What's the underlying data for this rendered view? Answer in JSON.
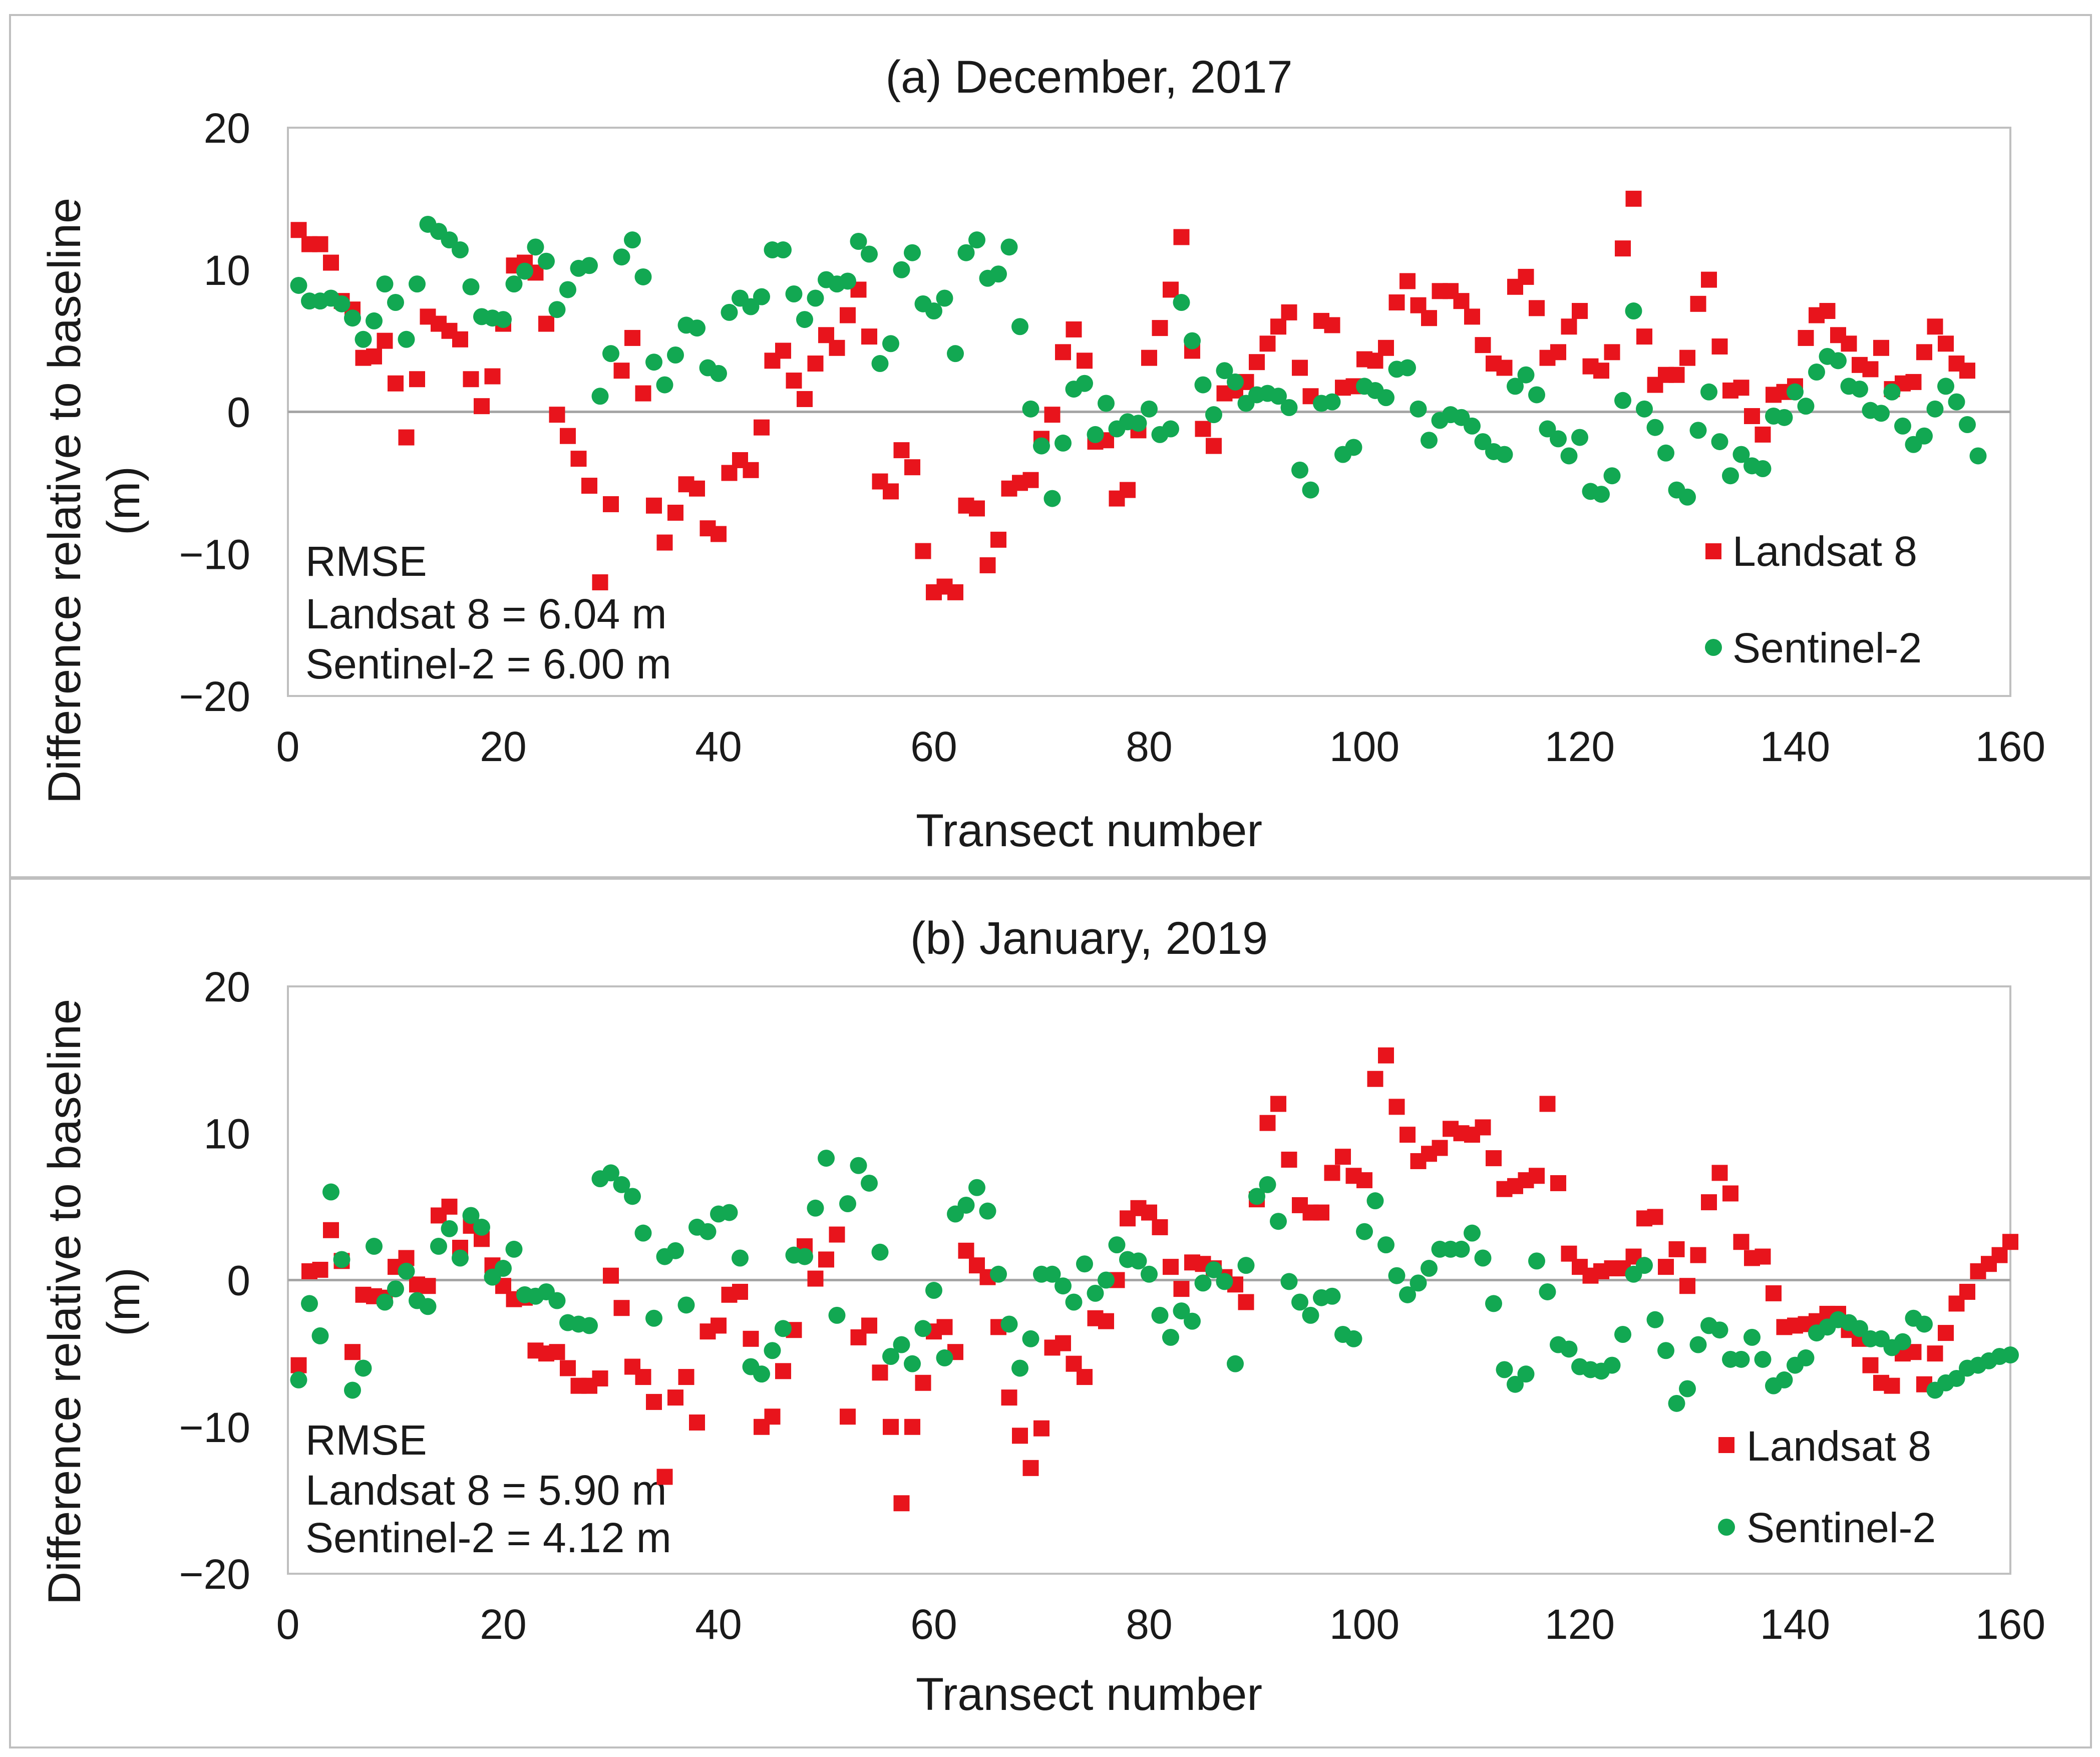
{
  "colors": {
    "landsat": "#e8141c",
    "sentinel": "#12a852",
    "gridline": "#d0d0d0",
    "frame": "#bfbfbf",
    "zero_line": "#a6a6a6"
  },
  "chart_data": [
    {
      "type": "scatter",
      "title": "(a) December, 2017",
      "xlabel": "Transect number",
      "ylabel": "Difference relative to baseline (m)",
      "ylabel_lines": [
        "Difference relative to baseline",
        "(m)"
      ],
      "xlim": [
        0,
        160
      ],
      "ylim": [
        -20,
        20
      ],
      "xticks": [
        "0",
        "20",
        "40",
        "60",
        "80",
        "100",
        "120",
        "140",
        "160"
      ],
      "yticks": [
        "20",
        "10",
        "0",
        "−10",
        "−20"
      ],
      "grid": "horizontal",
      "legend": {
        "placement": "right-middle",
        "entries": [
          "Landsat 8",
          "Sentinel-2"
        ]
      },
      "annotation": [
        "RMSE",
        "Landsat 8 = 6.04 m",
        "Sentinel-2 = 6.00 m"
      ],
      "x": [
        1,
        2,
        3,
        4,
        5,
        6,
        7,
        8,
        9,
        10,
        11,
        12,
        13,
        14,
        15,
        16,
        17,
        18,
        19,
        20,
        21,
        22,
        23,
        24,
        25,
        26,
        27,
        28,
        29,
        30,
        31,
        32,
        33,
        34,
        35,
        36,
        37,
        38,
        39,
        40,
        41,
        42,
        43,
        44,
        45,
        46,
        47,
        48,
        49,
        50,
        51,
        52,
        53,
        54,
        55,
        56,
        57,
        58,
        59,
        60,
        61,
        62,
        63,
        64,
        65,
        66,
        67,
        68,
        69,
        70,
        71,
        72,
        73,
        74,
        75,
        76,
        77,
        78,
        79,
        80,
        81,
        82,
        83,
        84,
        85,
        86,
        87,
        88,
        89,
        90,
        91,
        92,
        93,
        94,
        95,
        96,
        97,
        98,
        99,
        100,
        101,
        102,
        103,
        104,
        105,
        106,
        107,
        108,
        109,
        110,
        111,
        112,
        113,
        114,
        115,
        116,
        117,
        118,
        119,
        120,
        121,
        122,
        123,
        124,
        125,
        126,
        127,
        128,
        129,
        130,
        131,
        132,
        133,
        134,
        135,
        136,
        137,
        138,
        139,
        140,
        141,
        142,
        143,
        144,
        145,
        146,
        147,
        148,
        149,
        150,
        151,
        152,
        153,
        154,
        155,
        156,
        157
      ],
      "series": [
        {
          "name": "Landsat 8",
          "marker": "square",
          "values": [
            12.8,
            11.8,
            11.8,
            10.5,
            7.8,
            7.2,
            3.8,
            3.9,
            5.0,
            2.0,
            -1.8,
            2.3,
            6.7,
            6.2,
            5.7,
            5.1,
            2.3,
            0.4,
            2.5,
            6.2,
            10.3,
            10.5,
            9.8,
            6.2,
            -0.2,
            -1.7,
            -3.3,
            -5.2,
            -12.0,
            -6.5,
            2.9,
            5.2,
            1.3,
            -6.6,
            -9.2,
            -7.1,
            -5.1,
            -5.4,
            -8.2,
            -8.6,
            -4.3,
            -3.4,
            -4.1,
            -1.1,
            3.6,
            4.3,
            2.2,
            0.9,
            3.4,
            5.4,
            4.5,
            6.8,
            8.6,
            5.3,
            -4.9,
            -5.6,
            -2.7,
            -3.9,
            -9.8,
            -12.7,
            -12.3,
            -12.7,
            -6.6,
            -6.8,
            -10.8,
            -9.0,
            -5.4,
            -5.0,
            -4.8,
            -1.9,
            -0.2,
            4.2,
            5.8,
            3.6,
            -2.1,
            -2.0,
            -6.1,
            -5.5,
            -1.3,
            3.8,
            5.9,
            8.6,
            12.3,
            4.3,
            -1.2,
            -2.4,
            1.3,
            1.5,
            2.1,
            3.5,
            4.8,
            6.0,
            7.0,
            3.1,
            1.1,
            6.4,
            6.1,
            1.7,
            1.8,
            3.7,
            3.6,
            4.5,
            7.7,
            9.2,
            7.5,
            6.6,
            8.5,
            8.5,
            7.8,
            6.7,
            4.7,
            3.4,
            3.1,
            8.8,
            9.5,
            7.3,
            3.8,
            4.2,
            6.0,
            7.1,
            3.2,
            2.9,
            4.2,
            11.5,
            15.0,
            5.3,
            1.9,
            2.6,
            2.6,
            3.8,
            7.6,
            9.3,
            4.6,
            1.5,
            1.7,
            -0.3,
            -1.6,
            1.2,
            1.4,
            1.8,
            5.2,
            6.8,
            7.1,
            5.4,
            4.8,
            3.3,
            3.0,
            4.5,
            1.6,
            2.0,
            2.1,
            4.2,
            6.0,
            4.8,
            3.4,
            2.9
          ]
        },
        {
          "name": "Sentinel-2",
          "marker": "circle",
          "values": [
            8.9,
            7.8,
            7.8,
            8.0,
            7.6,
            6.6,
            5.1,
            6.4,
            9.0,
            7.7,
            5.1,
            9.0,
            13.2,
            12.7,
            12.1,
            11.4,
            8.8,
            6.7,
            6.6,
            6.5,
            9.0,
            9.9,
            11.6,
            10.6,
            7.2,
            8.6,
            10.1,
            10.3,
            1.1,
            4.1,
            10.9,
            12.1,
            9.5,
            3.5,
            1.9,
            4.0,
            6.1,
            5.9,
            3.1,
            2.7,
            7.0,
            8.0,
            7.4,
            8.1,
            11.4,
            11.4,
            8.3,
            6.5,
            8.0,
            9.3,
            9.0,
            9.2,
            12.0,
            11.1,
            3.4,
            4.8,
            10.0,
            11.2,
            7.6,
            7.1,
            8.0,
            4.1,
            11.2,
            12.1,
            9.4,
            9.7,
            11.6,
            6.0,
            0.2,
            -2.4,
            -6.1,
            -2.2,
            1.6,
            2.0,
            -1.6,
            0.6,
            -1.2,
            -0.7,
            -0.8,
            0.2,
            -1.6,
            -1.2,
            7.7,
            5.0,
            1.9,
            -0.2,
            2.9,
            2.1,
            0.6,
            1.2,
            1.3,
            1.1,
            0.3,
            -4.1,
            -5.5,
            0.6,
            0.7,
            -3.0,
            -2.5,
            1.8,
            1.5,
            1.0,
            3.0,
            3.1,
            0.2,
            -2.0,
            -0.6,
            -0.2,
            -0.4,
            -1.0,
            -2.1,
            -2.8,
            -3.0,
            1.8,
            2.6,
            1.2,
            -1.2,
            -1.9,
            -3.1,
            -1.8,
            -5.6,
            -5.8,
            -4.5,
            0.8,
            7.1,
            0.2,
            -1.1,
            -2.9,
            -5.5,
            -6.0,
            -1.3,
            1.4,
            -2.1,
            -4.5,
            -3.0,
            -3.8,
            -4.0,
            -0.3,
            -0.4,
            1.4,
            0.4,
            2.8,
            3.9,
            3.6,
            1.8,
            1.6,
            0.1,
            -0.1,
            1.4,
            -1.0,
            -2.3,
            -1.7,
            0.2,
            1.8,
            0.7,
            -0.9,
            -3.1
          ]
        }
      ]
    },
    {
      "type": "scatter",
      "title": "(b) January, 2019",
      "xlabel": "Transect number",
      "ylabel": "Difference relative to baseline (m)",
      "ylabel_lines": [
        "Difference relative to baseline",
        "(m)"
      ],
      "xlim": [
        0,
        160
      ],
      "ylim": [
        -20,
        20
      ],
      "xticks": [
        "0",
        "20",
        "40",
        "60",
        "80",
        "100",
        "120",
        "140",
        "160"
      ],
      "yticks": [
        "20",
        "10",
        "0",
        "−10",
        "−20"
      ],
      "grid": "horizontal",
      "legend": {
        "placement": "right-bottom",
        "entries": [
          "Landsat 8",
          "Sentinel-2"
        ]
      },
      "annotation": [
        "RMSE",
        "Landsat 8 = 5.90 m",
        "Sentinel-2 = 4.12 m"
      ],
      "x": [
        1,
        2,
        3,
        4,
        5,
        6,
        7,
        8,
        9,
        10,
        11,
        12,
        13,
        14,
        15,
        16,
        17,
        18,
        19,
        20,
        21,
        22,
        23,
        24,
        25,
        26,
        27,
        28,
        29,
        30,
        31,
        32,
        33,
        34,
        35,
        36,
        37,
        38,
        39,
        40,
        41,
        42,
        43,
        44,
        45,
        46,
        47,
        48,
        49,
        50,
        51,
        52,
        53,
        54,
        55,
        56,
        57,
        58,
        59,
        60,
        61,
        62,
        63,
        64,
        65,
        66,
        67,
        68,
        69,
        70,
        71,
        72,
        73,
        74,
        75,
        76,
        77,
        78,
        79,
        80,
        81,
        82,
        83,
        84,
        85,
        86,
        87,
        88,
        89,
        90,
        91,
        92,
        93,
        94,
        95,
        96,
        97,
        98,
        99,
        100,
        101,
        102,
        103,
        104,
        105,
        106,
        107,
        108,
        109,
        110,
        111,
        112,
        113,
        114,
        115,
        116,
        117,
        118,
        119,
        120,
        121,
        122,
        123,
        124,
        125,
        126,
        127,
        128,
        129,
        130,
        131,
        132,
        133,
        134,
        135,
        136,
        137,
        138,
        139,
        140,
        141,
        142,
        143,
        144,
        145,
        146,
        147,
        148,
        149,
        150,
        151,
        152,
        153,
        154,
        155,
        156,
        157,
        158,
        159,
        160
      ],
      "series": [
        {
          "name": "Landsat 8",
          "marker": "square",
          "values": [
            -5.8,
            0.6,
            0.7,
            3.4,
            1.3,
            -4.9,
            -1.0,
            -1.1,
            -1.2,
            0.9,
            1.5,
            -0.3,
            -0.4,
            4.4,
            5.0,
            2.2,
            3.7,
            2.8,
            1.0,
            -0.4,
            -1.3,
            -1.2,
            -4.8,
            -5.0,
            -4.9,
            -6.0,
            -7.2,
            -7.2,
            -6.7,
            0.3,
            -1.9,
            -5.9,
            -6.6,
            -8.3,
            -13.4,
            -8.0,
            -6.6,
            -9.7,
            -3.5,
            -3.1,
            -1.0,
            -0.8,
            -4.0,
            -10.0,
            -9.3,
            -6.2,
            -3.4,
            2.3,
            0.1,
            1.4,
            3.1,
            -9.3,
            -3.9,
            -3.1,
            -6.3,
            -10.0,
            -15.2,
            -10.0,
            -7.0,
            -3.5,
            -3.2,
            -4.9,
            2.0,
            1.0,
            0.2,
            -3.2,
            -8.0,
            -10.6,
            -12.8,
            -10.1,
            -4.6,
            -4.3,
            -5.7,
            -6.6,
            -2.6,
            -2.8,
            0.0,
            4.2,
            4.9,
            4.6,
            3.6,
            0.9,
            -0.6,
            1.2,
            1.1,
            0.8,
            0.2,
            -0.3,
            -1.5,
            5.5,
            10.7,
            12.0,
            8.2,
            5.1,
            4.6,
            4.6,
            7.3,
            8.4,
            7.1,
            6.8,
            13.7,
            15.3,
            11.8,
            9.9,
            8.1,
            8.6,
            9.0,
            10.3,
            10.0,
            9.9,
            10.4,
            8.3,
            6.2,
            6.4,
            6.8,
            7.1,
            12.0,
            6.6,
            1.8,
            0.9,
            0.3,
            0.6,
            0.8,
            0.8,
            1.6,
            4.2,
            4.3,
            0.9,
            2.1,
            -0.4,
            1.7,
            5.3,
            7.3,
            5.9,
            2.6,
            1.5,
            1.6,
            -0.9,
            -3.2,
            -3.1,
            -3.0,
            -2.8,
            -2.3,
            -2.3,
            -3.4,
            -4.0,
            -5.8,
            -7.0,
            -7.2,
            -5.0,
            -4.9,
            -7.1,
            -5.0,
            -3.6,
            -1.6,
            -0.8,
            0.6,
            1.1,
            1.7,
            2.6
          ]
        },
        {
          "name": "Sentinel-2",
          "marker": "circle",
          "values": [
            -6.8,
            -1.6,
            -3.8,
            6.0,
            1.4,
            -7.5,
            -6.0,
            2.3,
            -1.5,
            -0.6,
            0.6,
            -1.4,
            -1.8,
            2.3,
            3.5,
            1.5,
            4.4,
            3.6,
            0.2,
            0.8,
            2.1,
            -1.0,
            -1.1,
            -0.8,
            -1.4,
            -2.9,
            -3.0,
            -3.1,
            6.9,
            7.3,
            6.5,
            5.7,
            3.2,
            -2.6,
            1.6,
            2.0,
            -1.7,
            3.6,
            3.3,
            4.5,
            4.6,
            1.5,
            -5.9,
            -6.4,
            -4.8,
            -3.3,
            1.7,
            1.6,
            4.9,
            8.3,
            -2.4,
            5.2,
            7.8,
            6.6,
            1.9,
            -5.2,
            -4.4,
            -5.7,
            -3.3,
            -0.7,
            -5.3,
            4.5,
            5.1,
            6.3,
            4.7,
            0.4,
            -3.0,
            -6.0,
            -4.0,
            0.4,
            0.4,
            -0.4,
            -1.5,
            1.1,
            -0.9,
            0.0,
            2.4,
            1.4,
            1.3,
            0.4,
            -2.4,
            -3.9,
            -2.1,
            -2.8,
            -0.2,
            0.7,
            -0.1,
            -5.7,
            1.0,
            5.7,
            6.5,
            4.0,
            -0.1,
            -1.5,
            -2.4,
            -1.2,
            -1.1,
            -3.7,
            -4.0,
            3.3,
            5.4,
            2.4,
            0.3,
            -1.0,
            -0.2,
            0.8,
            2.1,
            2.1,
            2.1,
            3.2,
            1.5,
            -1.6,
            -6.1,
            -7.1,
            -6.4,
            1.3,
            -0.8,
            -4.4,
            -4.7,
            -5.9,
            -6.1,
            -6.2,
            -5.8,
            -3.7,
            0.4,
            1.0,
            -2.7,
            -4.8,
            -8.4,
            -7.4,
            -4.4,
            -3.1,
            -3.4,
            -5.4,
            -5.4,
            -3.9,
            -5.4,
            -7.2,
            -6.8,
            -5.8,
            -5.3,
            -3.6,
            -3.2,
            -2.7,
            -2.9,
            -3.3,
            -4.0,
            -4.0,
            -4.6,
            -4.2,
            -2.6,
            -3.0,
            -7.5,
            -7.0,
            -6.7,
            -6.0,
            -5.8,
            -5.5,
            -5.2,
            -5.1
          ]
        }
      ]
    }
  ]
}
